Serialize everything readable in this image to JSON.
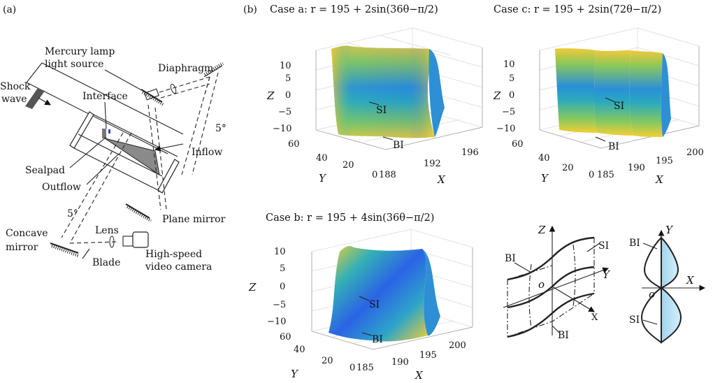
{
  "panel_a": {
    "tag": "(a)",
    "labels": {
      "mercury_1": "Mercury lamp",
      "mercury_2": "light source",
      "diaphragm": "Diaphragm",
      "shock_1": "Shock",
      "shock_2": "wave",
      "interface": "Interface",
      "angle_top": "5°",
      "inflow": "Inflow",
      "sealpad": "Sealpad",
      "outflow": "Outflow",
      "plane_mirror": "Plane mirror",
      "angle_bottom": "5°",
      "lens": "Lens",
      "concave_1": "Concave",
      "concave_2": "mirror",
      "highspeed_1": "High-speed",
      "highspeed_2": "video camera",
      "blade": "Blade"
    }
  },
  "panel_b": {
    "tag": "(b)",
    "plot_a": {
      "title": "Case a: r = 195 + 2sin(36θ−π/2)",
      "z_label": "Z",
      "y_label": "Y",
      "x_label": "X",
      "z_ticks": [
        "10",
        "5",
        "0",
        "−5",
        "−10"
      ],
      "y_ticks": [
        "60",
        "40",
        "20",
        "0"
      ],
      "x_ticks": [
        "188",
        "192",
        "196"
      ],
      "si": "SI",
      "bi": "BI"
    },
    "plot_c": {
      "title": "Case c: r = 195 + 2sin(72θ−π/2)",
      "z_label": "Z",
      "y_label": "Y",
      "x_label": "X",
      "z_ticks": [
        "10",
        "5",
        "0",
        "−5",
        "−10"
      ],
      "y_ticks": [
        "60",
        "40",
        "20",
        "0"
      ],
      "x_ticks": [
        "185",
        "190",
        "195",
        "200"
      ],
      "si": "SI",
      "bi": "BI"
    },
    "plot_b": {
      "title": "Case b: r = 195 + 4sin(36θ−π/2)",
      "z_label": "Z",
      "y_label": "Y",
      "x_label": "X",
      "z_ticks": [
        "10",
        "5",
        "0",
        "−5",
        "−10"
      ],
      "y_ticks": [
        "60",
        "40",
        "20",
        "0"
      ],
      "x_ticks": [
        "185",
        "190",
        "195",
        "200"
      ],
      "si": "SI",
      "bi": "BI"
    },
    "schematic": {
      "z": "Z",
      "y": "Y",
      "x": "X",
      "o": "o",
      "si": "SI",
      "bi_top": "BI",
      "bi_bottom": "BI"
    },
    "profile": {
      "y": "Y",
      "x": "X",
      "o": "o",
      "bi": "BI",
      "si": "SI",
      "fill_color": "#bfe3f5"
    },
    "colormap": [
      "#3e26a8",
      "#2f5ef0",
      "#1a9bd7",
      "#1fbba7",
      "#6cc46a",
      "#c6bf2f",
      "#f9d225"
    ]
  }
}
